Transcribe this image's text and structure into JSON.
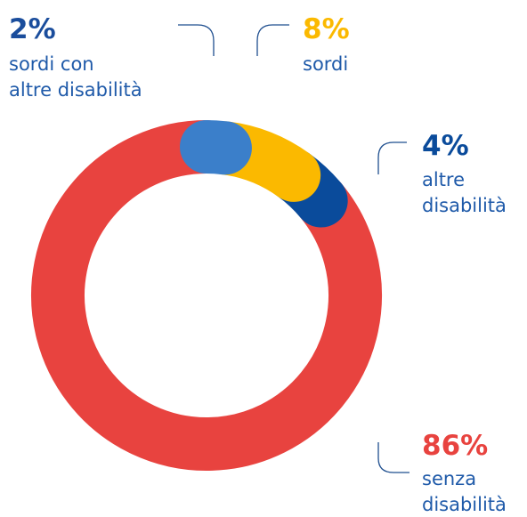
{
  "chart_data": {
    "type": "donut",
    "categories": [
      "sordi con\naltre disabilità",
      "sordi",
      "altre\ndisabilità",
      "senza\ndisabilità"
    ],
    "values": [
      2,
      8,
      4,
      86
    ],
    "value_labels": [
      "2%",
      "8%",
      "4%",
      "86%"
    ],
    "colors": [
      "#3b7fca",
      "#fbb900",
      "#0a4b9b",
      "#e8433f"
    ]
  }
}
